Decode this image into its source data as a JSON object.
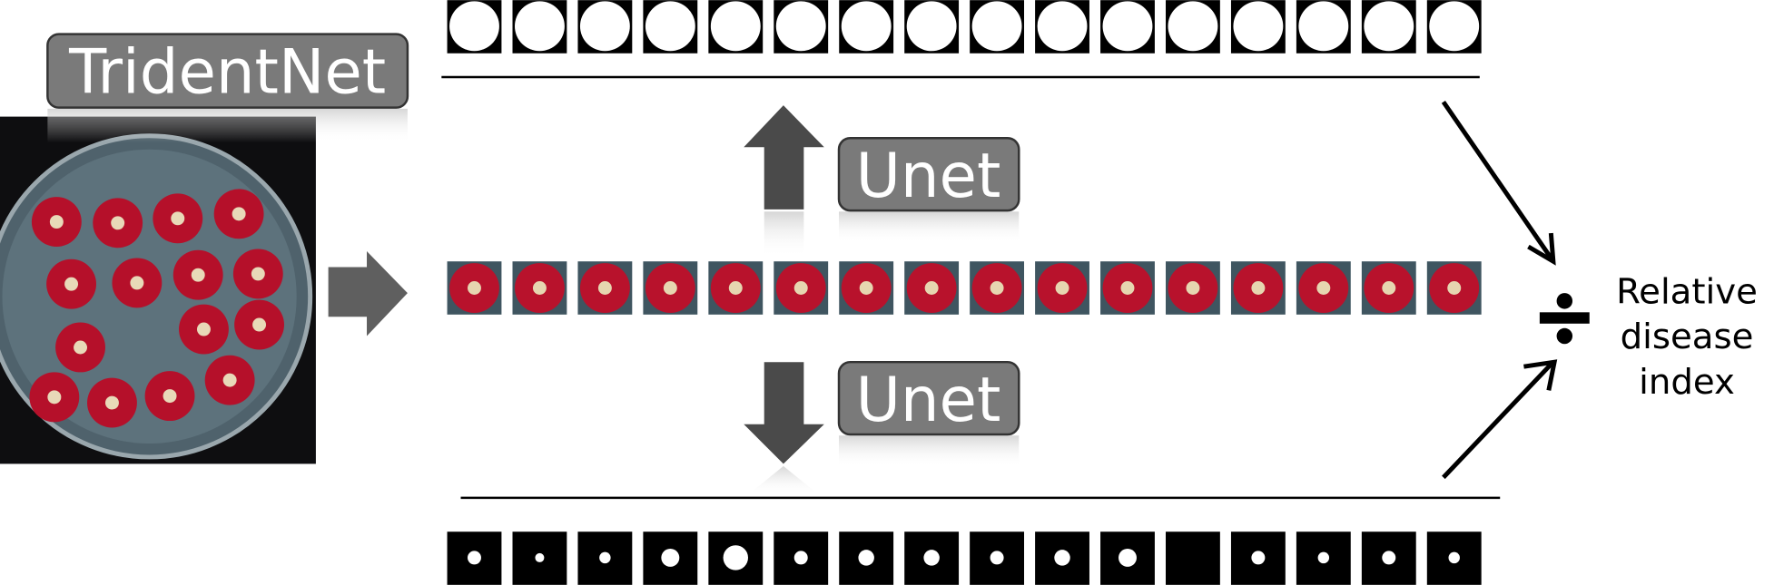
{
  "detector": {
    "label": "TridentNet"
  },
  "segmenters": [
    {
      "label": "Unet"
    },
    {
      "label": "Unet"
    }
  ],
  "output": {
    "lines": [
      "Relative",
      "disease",
      "index"
    ]
  }
}
